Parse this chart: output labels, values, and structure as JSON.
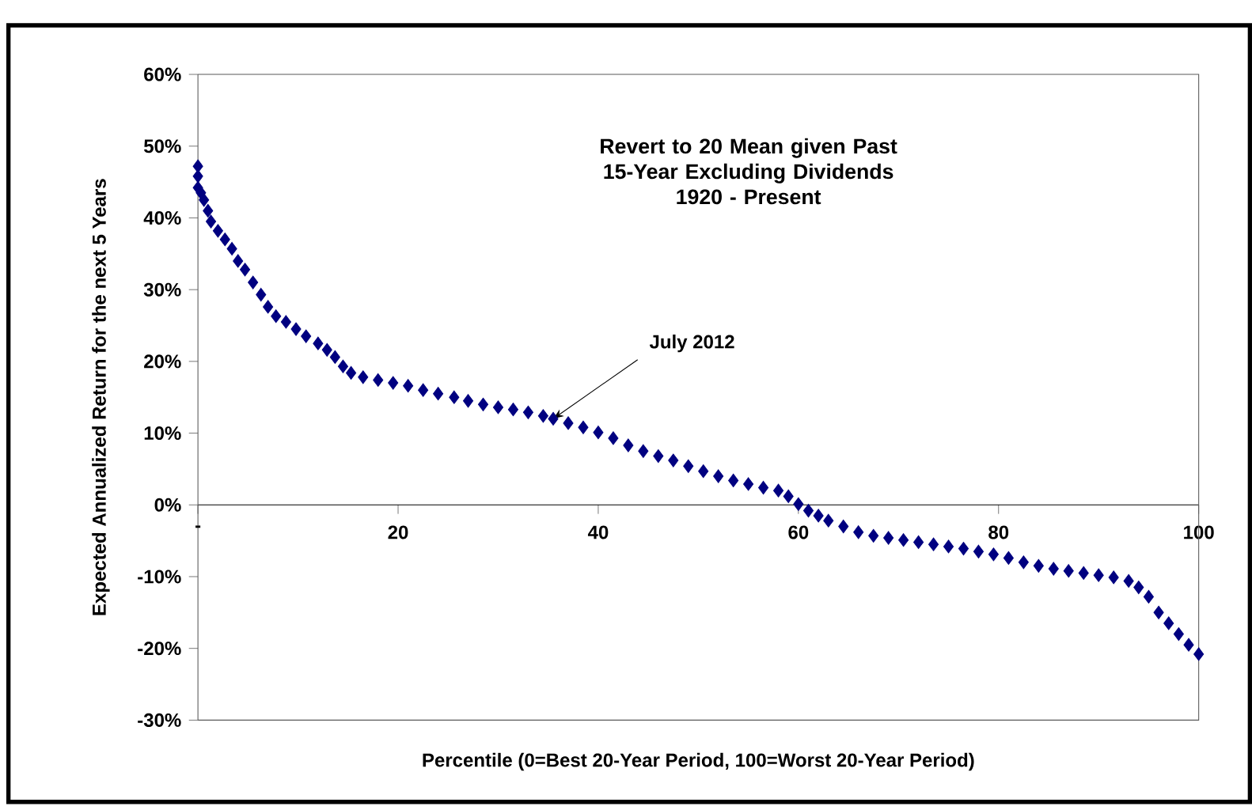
{
  "chart_data": {
    "type": "scatter",
    "title": "Revert to 20 Mean given Past 15-Year Excluding Dividends",
    "subtitle": "1920 - Present",
    "xlabel": "Percentile (0=Best 20-Year Period, 100=Worst 20-Year Period)",
    "ylabel": "Expected Annualized Return for the next 5 Years",
    "xlim": [
      0,
      100
    ],
    "xticks": [
      {
        "value": 0,
        "label": "-"
      },
      20,
      40,
      60,
      80,
      100
    ],
    "ylim": [
      -30,
      60
    ],
    "yticks": [
      {
        "value": -30,
        "label": "-30%"
      },
      {
        "value": -20,
        "label": "-20%"
      },
      {
        "value": -10,
        "label": "-10%"
      },
      {
        "value": 0,
        "label": "0%"
      },
      {
        "value": 10,
        "label": "10%"
      },
      {
        "value": 20,
        "label": "20%"
      },
      {
        "value": 30,
        "label": "30%"
      },
      {
        "value": 40,
        "label": "40%"
      },
      {
        "value": 50,
        "label": "50%"
      },
      {
        "value": 60,
        "label": "60%"
      }
    ],
    "marker": "diamond",
    "annotations": [
      {
        "text": "July 2012",
        "x": 35.5,
        "y": 12
      }
    ],
    "series": [
      {
        "color": "#000080",
        "x": [
          0,
          0,
          0,
          0.3,
          0.6,
          1,
          1.3,
          2,
          2.7,
          3.4,
          4,
          4.7,
          5.5,
          6.3,
          7,
          7.8,
          8.8,
          9.8,
          10.8,
          12,
          12.9,
          13.7,
          14.5,
          15.3,
          16.5,
          18,
          19.5,
          21,
          22.5,
          24,
          25.6,
          27,
          28.5,
          30,
          31.5,
          33,
          34.5,
          35.5,
          37,
          38.5,
          40,
          41.5,
          43,
          44.5,
          46,
          47.5,
          49,
          50.5,
          52,
          53.5,
          55,
          56.5,
          58,
          59,
          60,
          61,
          62,
          63,
          64.5,
          66,
          67.5,
          69,
          70.5,
          72,
          73.5,
          75,
          76.5,
          78,
          79.5,
          81,
          82.5,
          84,
          85.5,
          87,
          88.5,
          90,
          91.5,
          93,
          94,
          95,
          96,
          97,
          98,
          99,
          100
        ],
        "values": [
          47.2,
          45.8,
          44.2,
          43.5,
          42.5,
          41,
          39.5,
          38.2,
          37,
          35.7,
          34,
          32.8,
          31,
          29.3,
          27.6,
          26.3,
          25.5,
          24.5,
          23.5,
          22.5,
          21.6,
          20.6,
          19.3,
          18.4,
          17.8,
          17.4,
          17,
          16.6,
          16,
          15.5,
          15,
          14.5,
          14,
          13.6,
          13.3,
          12.9,
          12.4,
          12,
          11.4,
          10.8,
          10.1,
          9.3,
          8.3,
          7.5,
          6.8,
          6.2,
          5.4,
          4.7,
          4,
          3.4,
          2.9,
          2.4,
          2,
          1.2,
          0.1,
          -0.8,
          -1.5,
          -2.2,
          -3,
          -3.8,
          -4.3,
          -4.6,
          -4.9,
          -5.2,
          -5.5,
          -5.8,
          -6.1,
          -6.5,
          -6.9,
          -7.4,
          -8,
          -8.5,
          -8.9,
          -9.2,
          -9.5,
          -9.8,
          -10.1,
          -10.6,
          -11.5,
          -12.8,
          -15,
          -16.5,
          -18,
          -19.5,
          -20.8
        ]
      }
    ]
  }
}
